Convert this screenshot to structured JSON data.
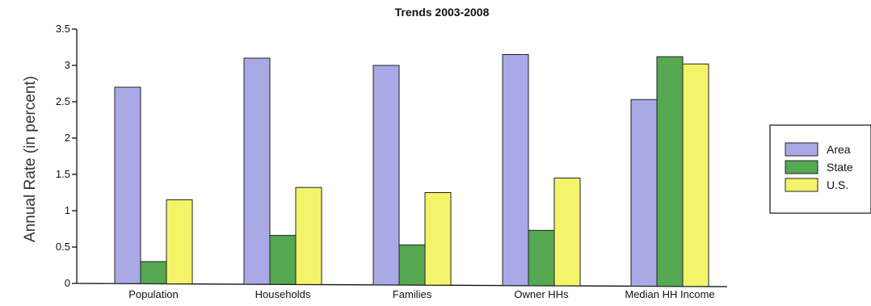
{
  "chart_data": {
    "type": "bar",
    "title": "Trends 2003-2008",
    "xlabel": "",
    "ylabel": "Annual Rate (in percent)",
    "ylim": [
      0,
      3.5
    ],
    "yticks": [
      "0",
      "0.5",
      "1",
      "1.5",
      "2",
      "2.5",
      "3",
      "3.5"
    ],
    "categories": [
      "Population",
      "Households",
      "Families",
      "Owner HHs",
      "Median HH Income"
    ],
    "series": [
      {
        "name": "Area",
        "color": "#a9a9e6",
        "values": [
          2.7,
          3.1,
          3.0,
          3.15,
          2.53
        ]
      },
      {
        "name": "State",
        "color": "#56a852",
        "values": [
          0.3,
          0.66,
          0.53,
          0.73,
          3.12
        ]
      },
      {
        "name": "U.S.",
        "color": "#f4f46a",
        "values": [
          1.15,
          1.32,
          1.25,
          1.45,
          3.02
        ]
      }
    ],
    "grid": false,
    "legend_position": "right"
  }
}
